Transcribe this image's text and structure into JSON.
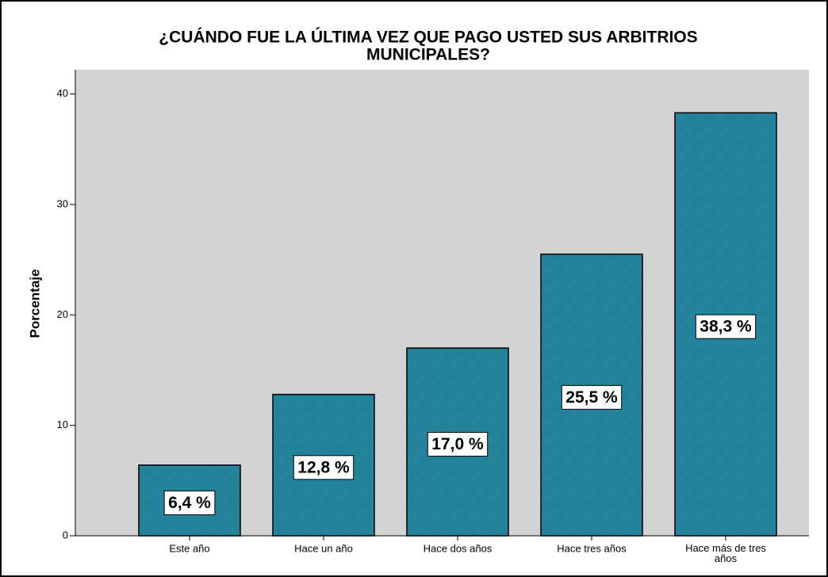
{
  "chart_data": {
    "type": "bar",
    "title": [
      "¿CUÁNDO FUE LA ÚLTIMA VEZ QUE PAGO USTED SUS ARBITRIOS",
      "MUNICIPALES?"
    ],
    "y_label": "Porcentaje",
    "categories": [
      "Este año",
      "Hace un año",
      "Hace dos años",
      "Hace tres años",
      "Hace más de tres años"
    ],
    "values": [
      6.4,
      12.8,
      17.0,
      25.5,
      38.3
    ],
    "value_labels": [
      "6,4 %",
      "12,8 %",
      "17,0 %",
      "25,5 %",
      "38,3 %"
    ],
    "color": "#1f7891",
    "ylim": [
      0,
      42.2
    ],
    "yticks": [
      0,
      10,
      20,
      30,
      40
    ]
  }
}
